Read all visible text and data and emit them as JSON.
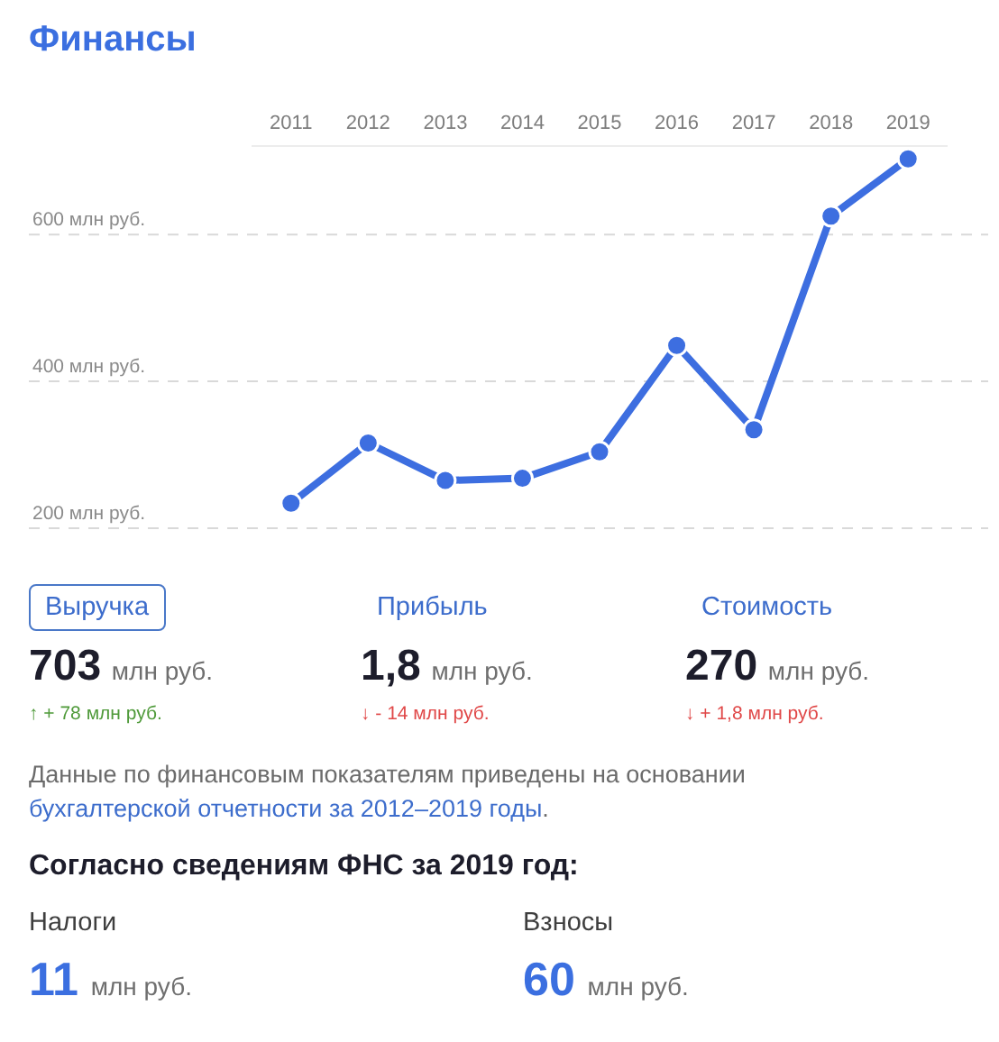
{
  "chart_data": [
    {
      "type": "line",
      "title": "Финансы",
      "categories": [
        "2011",
        "2012",
        "2013",
        "2014",
        "2015",
        "2016",
        "2017",
        "2018",
        "2019"
      ],
      "values": [
        234,
        316,
        265,
        268,
        304,
        449,
        334,
        625,
        703
      ],
      "color": "#3d6ee0",
      "ylim": [
        200,
        720
      ],
      "yticks": [
        {
          "value": 200,
          "label": "200 млн руб."
        },
        {
          "value": 400,
          "label": "400 млн руб."
        },
        {
          "value": 600,
          "label": "600 млн руб."
        }
      ],
      "grid": "y",
      "marker": "circle"
    },
    {
      "type": "other",
      "annotations": [
        "Выручка",
        "703 млн руб.",
        "↑ + 78 млн руб.",
        "Прибыль",
        "1,8 млн руб.",
        "↓ - 14 млн руб.",
        "Стоимость",
        "270 млн руб.",
        "↓ + 1,8 млн руб.",
        "Данные по финансовым показателям приведены на основании ",
        "бухгалтерской отчетности за 2012–2019 годы",
        "."
      ]
    },
    {
      "type": "other",
      "title": "Согласно сведениям ФНС за 2019 год:",
      "annotations": [
        "Налоги",
        "11 млн руб.",
        "Взносы",
        "60 млн руб."
      ]
    }
  ]
}
